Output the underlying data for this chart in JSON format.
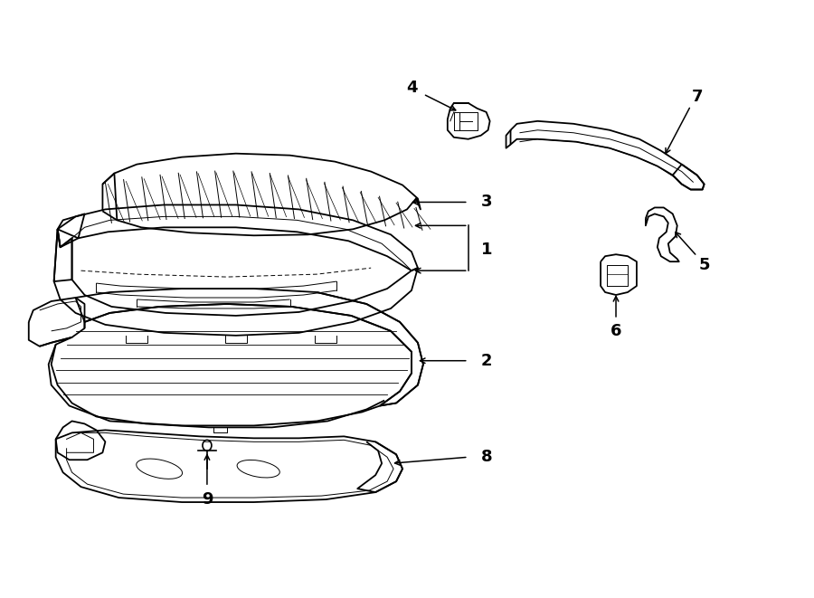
{
  "bg_color": "#ffffff",
  "line_color": "#000000",
  "fig_width": 9.0,
  "fig_height": 6.61,
  "dpi": 100,
  "xlim": [
    0,
    9
  ],
  "ylim": [
    0,
    6.61
  ],
  "font_size": 11,
  "font_size_bold": 13,
  "lw_main": 1.3,
  "lw_thin": 0.7,
  "lw_detail": 0.5
}
